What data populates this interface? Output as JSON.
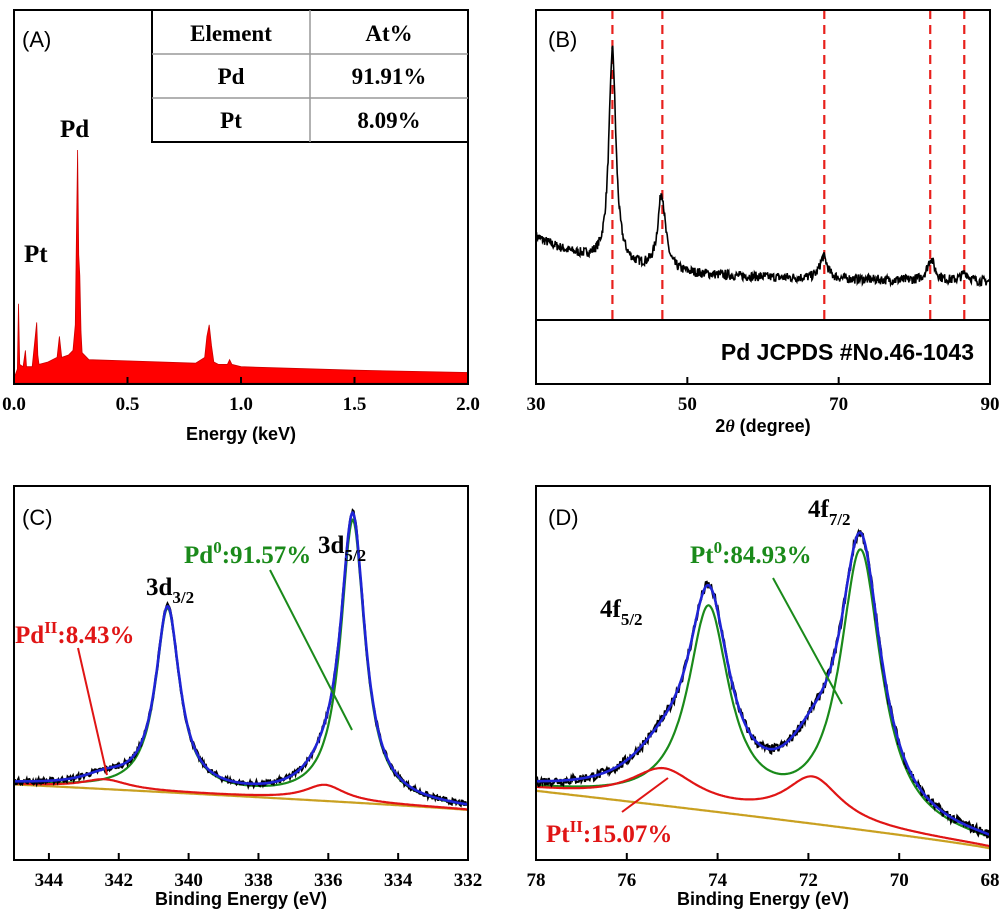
{
  "chart_data": [
    {
      "panel": "(A)",
      "type": "area",
      "xlabel": "Energy (keV)",
      "xlim": [
        0.0,
        2.0
      ],
      "xticks": [
        "0.0",
        "0.5",
        "1.0",
        "1.5",
        "2.0"
      ],
      "color": "#ff0000",
      "x": [
        0.0,
        0.015,
        0.02,
        0.025,
        0.04,
        0.05,
        0.055,
        0.08,
        0.1,
        0.105,
        0.11,
        0.15,
        0.19,
        0.2,
        0.21,
        0.24,
        0.26,
        0.27,
        0.275,
        0.28,
        0.285,
        0.29,
        0.295,
        0.3,
        0.33,
        0.5,
        0.8,
        0.84,
        0.85,
        0.86,
        0.87,
        0.88,
        0.9,
        0.94,
        0.95,
        0.96,
        1.0,
        1.5,
        2.0
      ],
      "y": [
        0.02,
        0.06,
        0.34,
        0.08,
        0.07,
        0.14,
        0.07,
        0.07,
        0.26,
        0.12,
        0.08,
        0.09,
        0.11,
        0.2,
        0.11,
        0.12,
        0.14,
        0.25,
        0.62,
        1.0,
        0.55,
        0.46,
        0.22,
        0.13,
        0.1,
        0.095,
        0.085,
        0.11,
        0.2,
        0.25,
        0.16,
        0.09,
        0.08,
        0.08,
        0.1,
        0.08,
        0.07,
        0.055,
        0.045
      ],
      "annotations": [
        "Pd",
        "Pt"
      ],
      "table": {
        "headers": [
          "Element",
          "At%"
        ],
        "rows": [
          [
            "Pd",
            "91.91%"
          ],
          [
            "Pt",
            "8.09%"
          ]
        ]
      }
    },
    {
      "panel": "(B)",
      "type": "line",
      "xlabel_prefix": "2",
      "xlabel_theta": "θ",
      "xlabel_suffix": " (degree)",
      "xlim": [
        30,
        90
      ],
      "xticks": [
        "30",
        "50",
        "70",
        "90"
      ],
      "color": "#000000",
      "reference_lines": [
        40.1,
        46.7,
        68.1,
        82.1,
        86.6
      ],
      "reference_color": "#e8201c",
      "peaks": [
        {
          "center": 40.1,
          "height": 0.78,
          "width": 0.55
        },
        {
          "center": 46.6,
          "height": 0.28,
          "width": 0.6
        },
        {
          "center": 68.0,
          "height": 0.08,
          "width": 0.6
        },
        {
          "center": 82.2,
          "height": 0.08,
          "width": 0.6
        },
        {
          "center": 86.7,
          "height": 0.03,
          "width": 0.6
        }
      ],
      "reference_label": "Pd JCPDS #No.46-1043"
    },
    {
      "panel": "(C)",
      "type": "line",
      "xlabel": "Binding Energy (eV)",
      "xlim": [
        345,
        332
      ],
      "xticks": [
        "344",
        "342",
        "340",
        "338",
        "336",
        "334",
        "332"
      ],
      "series": [
        {
          "color": "#000000",
          "role": "raw"
        },
        {
          "color": "#1f24d6",
          "role": "envelope"
        },
        {
          "color": "#1a8a1a",
          "role": "Pd0"
        },
        {
          "color": "#e01515",
          "role": "PdII"
        },
        {
          "color": "#c9a020",
          "role": "background"
        }
      ],
      "components": {
        "Pd0": [
          {
            "center": 335.3,
            "height": 0.88,
            "width": 0.42
          },
          {
            "center": 340.6,
            "height": 0.57,
            "width": 0.42
          }
        ],
        "PdII": [
          {
            "center": 336.1,
            "height": 0.05,
            "width": 0.7
          },
          {
            "center": 342.4,
            "height": 0.03,
            "width": 0.8
          }
        ]
      },
      "peak_labels": {
        "d52_main": "3d",
        "d52_sub": "5/2",
        "d32_main": "3d",
        "d32_sub": "3/2"
      },
      "component_labels": {
        "pd0_main": "Pd",
        "pd0_sup": "0",
        "pd0_val": ":91.57%",
        "pdii_main": "Pd",
        "pdii_sup": "II",
        "pdii_val": ":8.43%"
      }
    },
    {
      "panel": "(D)",
      "type": "line",
      "xlabel": "Binding Energy (eV)",
      "xlim": [
        78,
        68
      ],
      "xticks": [
        "78",
        "76",
        "74",
        "72",
        "70",
        "68"
      ],
      "series": [
        {
          "color": "#000000",
          "role": "raw"
        },
        {
          "color": "#1f24d6",
          "role": "envelope"
        },
        {
          "color": "#1a8a1a",
          "role": "Pt0"
        },
        {
          "color": "#e01515",
          "role": "PtII"
        },
        {
          "color": "#c9a020",
          "role": "background"
        }
      ],
      "components": {
        "Pt0": [
          {
            "center": 70.85,
            "height": 0.86,
            "width": 0.55
          },
          {
            "center": 74.2,
            "height": 0.62,
            "width": 0.55
          }
        ],
        "PtII": [
          {
            "center": 71.9,
            "height": 0.14,
            "width": 0.75
          },
          {
            "center": 75.2,
            "height": 0.11,
            "width": 0.9
          }
        ]
      },
      "peak_labels": {
        "f72_main": "4f",
        "f72_sub": "7/2",
        "f52_main": "4f",
        "f52_sub": "5/2"
      },
      "component_labels": {
        "pt0_main": "Pt",
        "pt0_sup": "0",
        "pt0_val": ":84.93%",
        "ptii_main": "Pt",
        "ptii_sup": "II",
        "ptii_val": ":15.07%"
      }
    }
  ]
}
